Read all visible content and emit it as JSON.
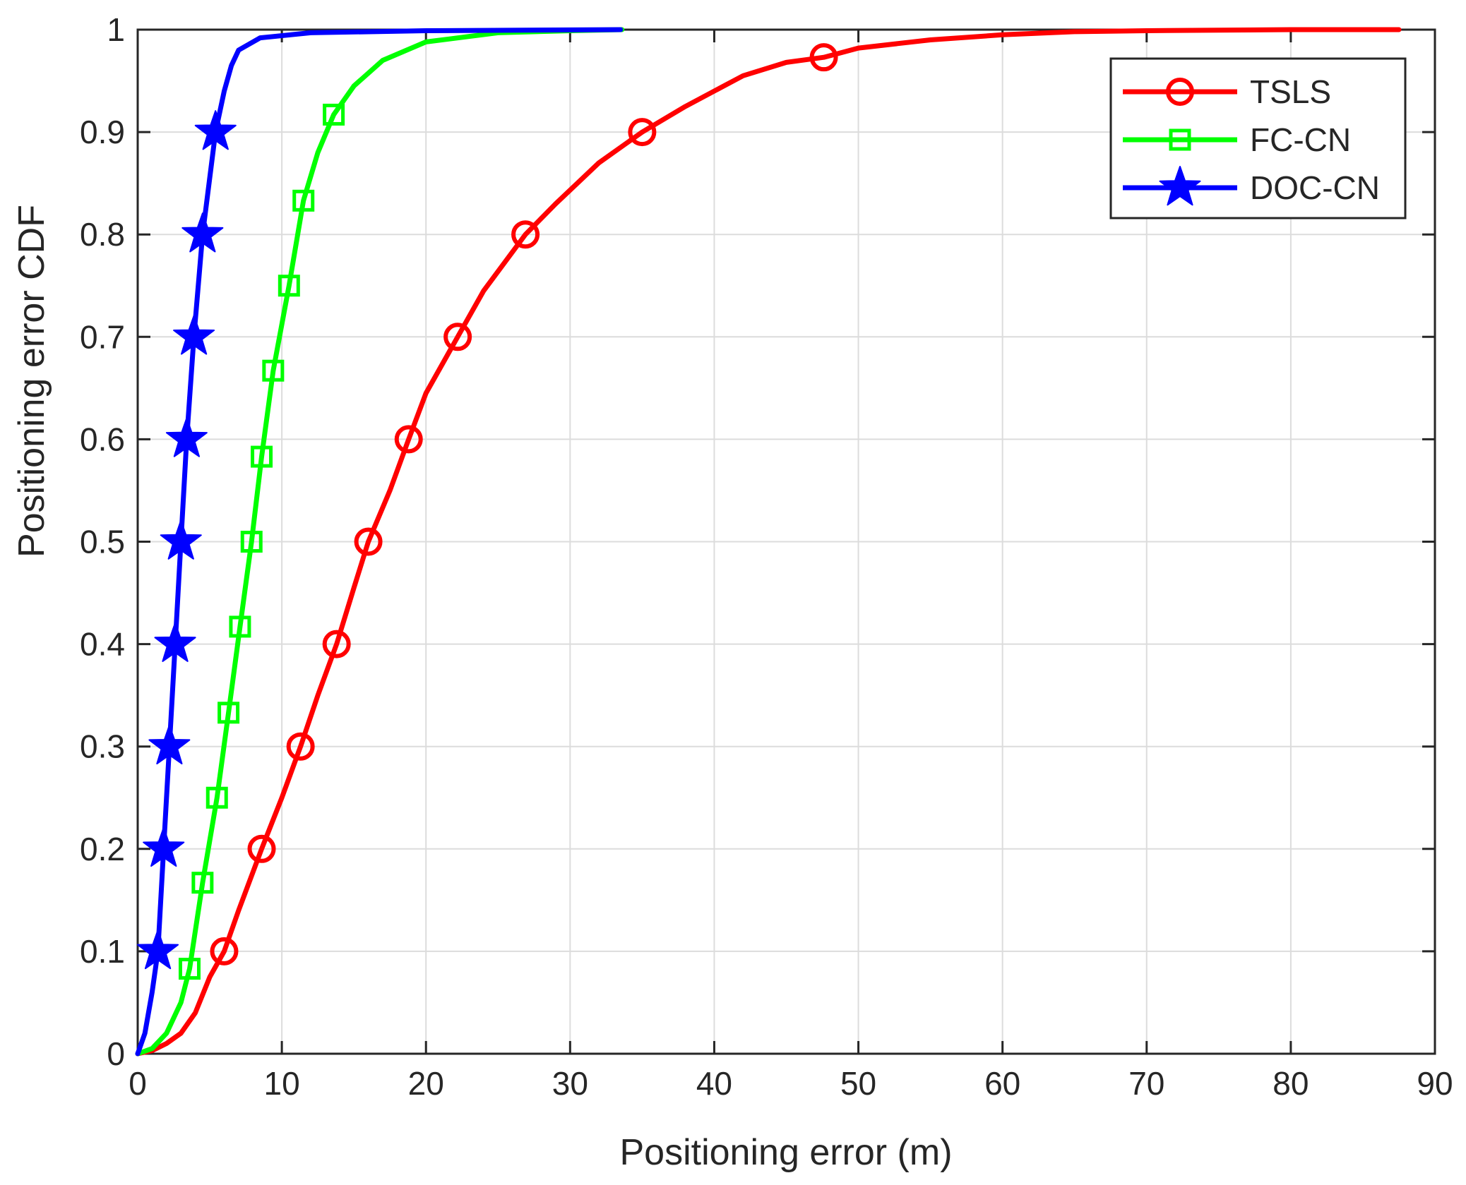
{
  "chart_data": {
    "type": "line",
    "xlabel": "Positioning error (m)",
    "ylabel": "Positioning error CDF",
    "xlim": [
      0,
      90
    ],
    "ylim": [
      0,
      1
    ],
    "xticks": [
      0,
      10,
      20,
      30,
      40,
      50,
      60,
      70,
      80,
      90
    ],
    "yticks": [
      0,
      0.1,
      0.2,
      0.3,
      0.4,
      0.5,
      0.6,
      0.7,
      0.8,
      0.9,
      1
    ],
    "xtick_labels": [
      "0",
      "10",
      "20",
      "30",
      "40",
      "50",
      "60",
      "70",
      "80",
      "90"
    ],
    "ytick_labels": [
      "0",
      "0.1",
      "0.2",
      "0.3",
      "0.4",
      "0.5",
      "0.6",
      "0.7",
      "0.8",
      "0.9",
      "1"
    ],
    "grid": true,
    "legend_position": "top-right",
    "series": [
      {
        "name": "TSLS",
        "color": "#ff0000",
        "marker": "circle",
        "x": [
          0,
          1.0,
          2.0,
          3.0,
          4.0,
          5.0,
          6.0,
          7.0,
          8.6,
          10.0,
          11.3,
          12.5,
          13.8,
          15.0,
          16.0,
          17.5,
          18.8,
          20.0,
          22.2,
          24.0,
          26.9,
          29.0,
          32.0,
          35.0,
          38.0,
          42.0,
          45.0,
          47.6,
          50.0,
          55.0,
          60.0,
          65.0,
          70.0,
          80.0,
          87.5
        ],
        "y": [
          0,
          0.003,
          0.01,
          0.02,
          0.04,
          0.075,
          0.1,
          0.14,
          0.2,
          0.25,
          0.3,
          0.35,
          0.4,
          0.455,
          0.5,
          0.55,
          0.6,
          0.645,
          0.7,
          0.745,
          0.8,
          0.83,
          0.87,
          0.9,
          0.925,
          0.955,
          0.968,
          0.973,
          0.982,
          0.99,
          0.995,
          0.998,
          0.999,
          1.0,
          1.0
        ],
        "markers": [
          [
            6.0,
            0.1
          ],
          [
            8.6,
            0.2
          ],
          [
            11.3,
            0.3
          ],
          [
            13.8,
            0.4
          ],
          [
            16.0,
            0.5
          ],
          [
            18.8,
            0.6
          ],
          [
            22.2,
            0.7
          ],
          [
            26.9,
            0.8
          ],
          [
            35.0,
            0.9
          ],
          [
            47.6,
            0.973
          ]
        ]
      },
      {
        "name": "FC-CN",
        "color": "#00ff00",
        "marker": "square",
        "x": [
          0,
          1.0,
          2.0,
          3.0,
          3.6,
          4.5,
          5.5,
          6.3,
          7.1,
          7.9,
          8.6,
          9.4,
          10.5,
          11.5,
          12.5,
          13.6,
          15.0,
          17.0,
          20.0,
          25.0,
          30.0,
          33.6
        ],
        "y": [
          0,
          0.005,
          0.02,
          0.05,
          0.083,
          0.167,
          0.25,
          0.333,
          0.417,
          0.5,
          0.583,
          0.667,
          0.75,
          0.833,
          0.88,
          0.917,
          0.945,
          0.97,
          0.988,
          0.997,
          0.999,
          1.0
        ],
        "markers": [
          [
            3.6,
            0.083
          ],
          [
            4.5,
            0.167
          ],
          [
            5.5,
            0.25
          ],
          [
            6.3,
            0.333
          ],
          [
            7.1,
            0.417
          ],
          [
            7.9,
            0.5
          ],
          [
            8.6,
            0.583
          ],
          [
            9.4,
            0.667
          ],
          [
            10.5,
            0.75
          ],
          [
            11.5,
            0.833
          ],
          [
            13.6,
            0.917
          ]
        ]
      },
      {
        "name": "DOC-CN",
        "color": "#0000ff",
        "marker": "star",
        "x": [
          0,
          0.5,
          1.0,
          1.4,
          1.8,
          2.2,
          2.6,
          3.0,
          3.4,
          3.9,
          4.5,
          5.4,
          6.0,
          6.5,
          7.0,
          8.5,
          12.0,
          20.0,
          33.5
        ],
        "y": [
          0,
          0.02,
          0.06,
          0.1,
          0.2,
          0.3,
          0.4,
          0.5,
          0.6,
          0.7,
          0.8,
          0.9,
          0.94,
          0.965,
          0.98,
          0.992,
          0.997,
          0.999,
          1.0
        ],
        "markers": [
          [
            1.4,
            0.1
          ],
          [
            1.8,
            0.2
          ],
          [
            2.2,
            0.3
          ],
          [
            2.6,
            0.4
          ],
          [
            3.0,
            0.5
          ],
          [
            3.4,
            0.6
          ],
          [
            3.9,
            0.7
          ],
          [
            4.5,
            0.8
          ],
          [
            5.4,
            0.9
          ]
        ]
      }
    ]
  }
}
